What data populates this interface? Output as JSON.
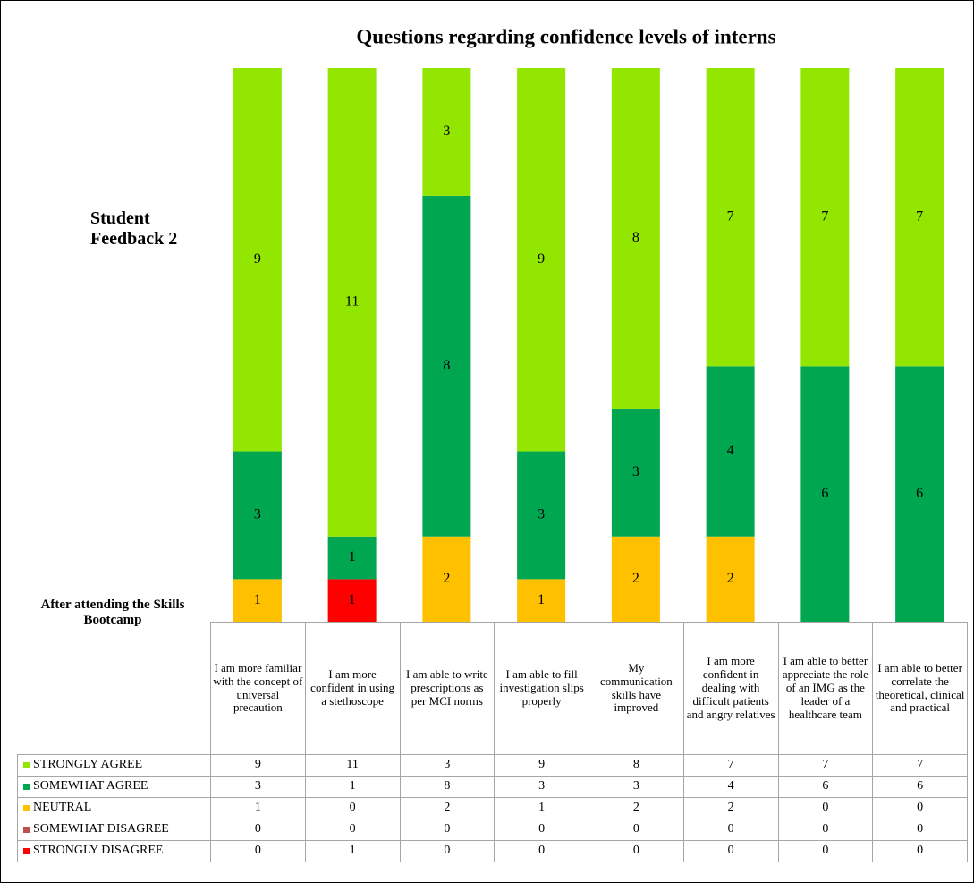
{
  "chart_data": {
    "type": "stacked_bar",
    "title": "Questions regarding confidence levels of interns",
    "annotations": [
      "Student Feedback 2",
      "After attending the Skills Bootcamp"
    ],
    "categories": [
      "I am more familiar with the concept of universal precaution",
      "I am more confident in using a stethoscope",
      "I am able to write prescriptions as per MCI norms",
      "I am able to fill investigation slips properly",
      "My communication skills have improved",
      "I am more confident in dealing with difficult patients and angry relatives",
      "I am able to better appreciate the role of an IMG as the leader of a healthcare team",
      "I am able to better correlate the theoretical, clinical and practical"
    ],
    "series": [
      {
        "name": "STRONGLY AGREE",
        "color": "#92e600",
        "values": [
          9,
          11,
          3,
          9,
          8,
          7,
          7,
          7
        ]
      },
      {
        "name": "SOMEWHAT AGREE",
        "color": "#00a650",
        "values": [
          3,
          1,
          8,
          3,
          3,
          4,
          6,
          6
        ]
      },
      {
        "name": "NEUTRAL",
        "color": "#ffc000",
        "values": [
          1,
          0,
          2,
          1,
          2,
          2,
          0,
          0
        ]
      },
      {
        "name": "SOMEWHAT DISAGREE",
        "color": "#c0504d",
        "values": [
          0,
          0,
          0,
          0,
          0,
          0,
          0,
          0
        ]
      },
      {
        "name": "STRONGLY DISAGREE",
        "color": "#ff0000",
        "values": [
          0,
          1,
          0,
          0,
          0,
          0,
          0,
          0
        ]
      }
    ],
    "ylim": [
      0,
      13
    ]
  }
}
